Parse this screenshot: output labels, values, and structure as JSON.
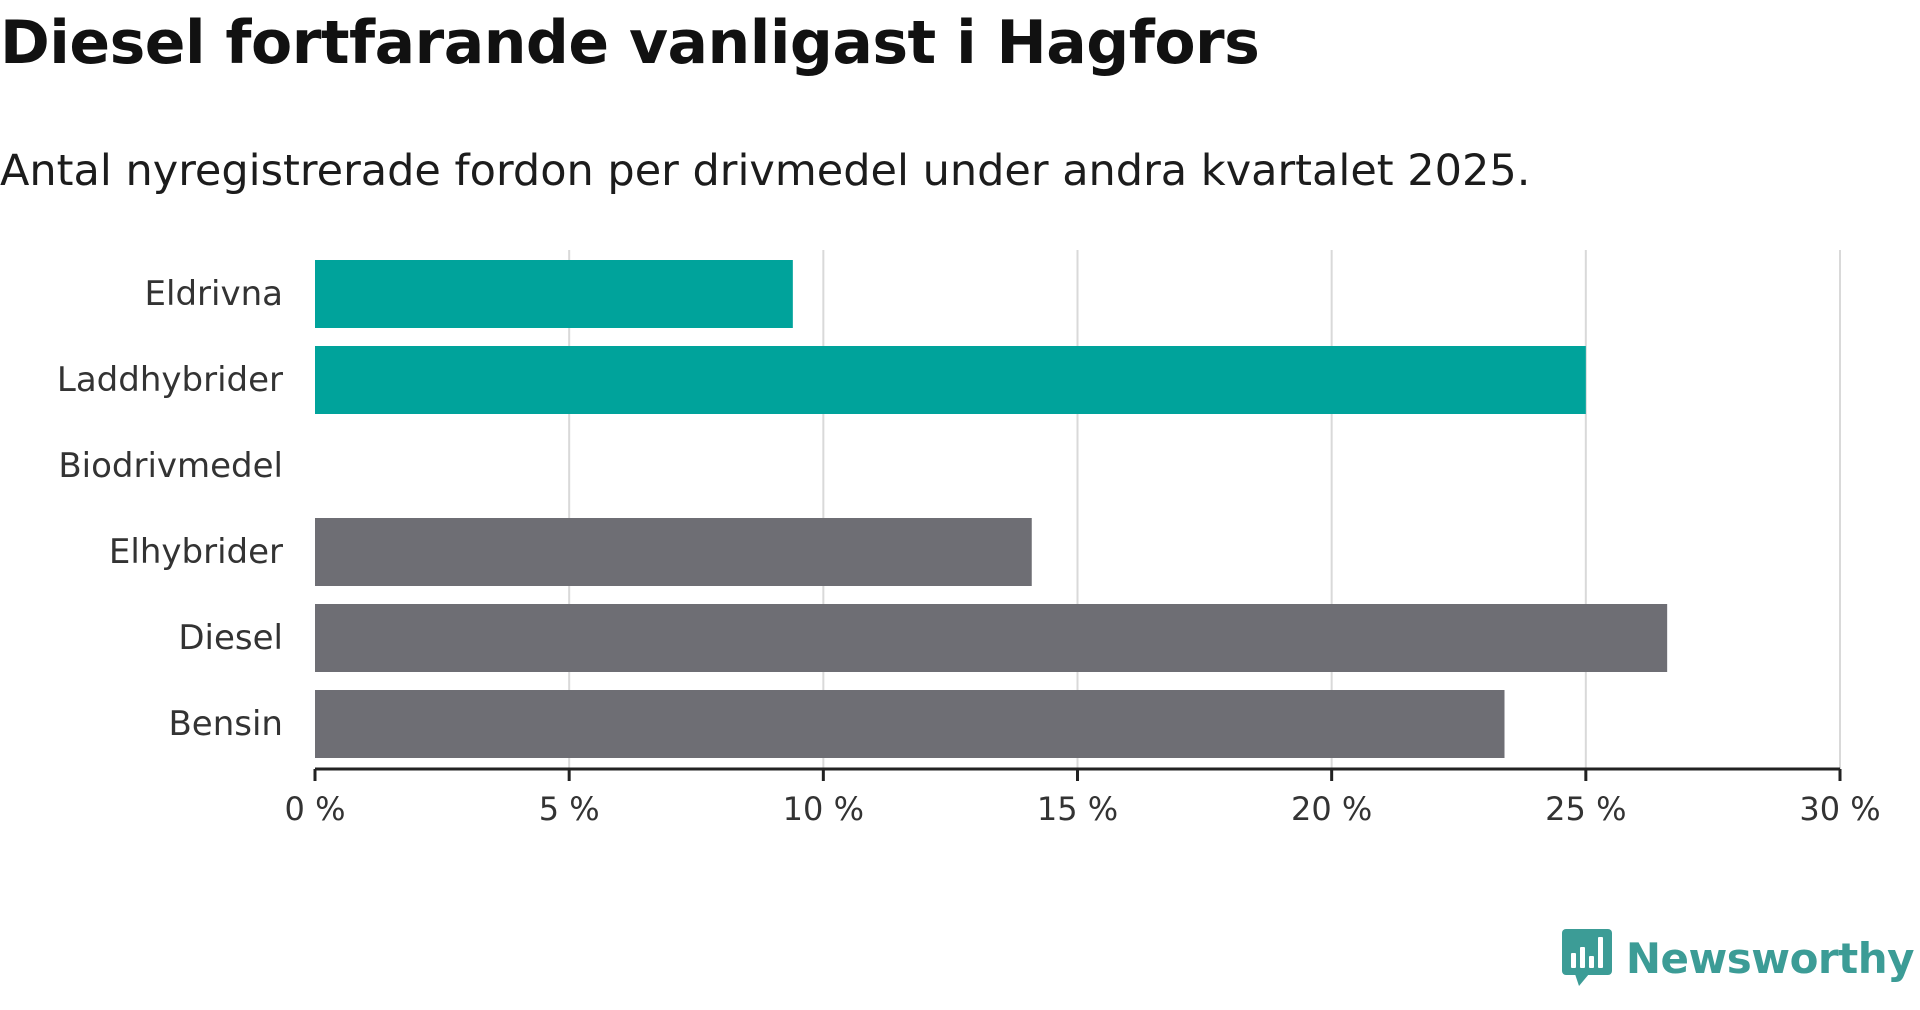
{
  "header": {
    "title": "Diesel fortfarande vanligast i Hagfors",
    "subtitle": "Antal nyregistrerade fordon per drivmedel under andra kvartalet 2025."
  },
  "brand": {
    "name": "Newsworthy",
    "logo_icon": "newsworthy-chart-speech-bubble-icon",
    "color": "#3c9c96"
  },
  "colors": {
    "highlight": "#00a39b",
    "other": "#6e6e74",
    "grid": "#d9d9d9",
    "axis": "#222222"
  },
  "chart_data": {
    "type": "bar",
    "orientation": "horizontal",
    "title": "Diesel fortfarande vanligast i Hagfors",
    "subtitle": "Antal nyregistrerade fordon per drivmedel under andra kvartalet 2025.",
    "categories": [
      "Eldrivna",
      "Laddhybrider",
      "Biodrivmedel",
      "Elhybrider",
      "Diesel",
      "Bensin"
    ],
    "values": [
      9.4,
      25.0,
      0,
      14.1,
      26.6,
      23.4
    ],
    "bar_colors": [
      "#00a39b",
      "#00a39b",
      "#00a39b",
      "#6e6e74",
      "#6e6e74",
      "#6e6e74"
    ],
    "xlim": [
      0,
      30
    ],
    "x_ticks": [
      0,
      5,
      10,
      15,
      20,
      25,
      30
    ],
    "x_tick_labels": [
      "0 %",
      "5 %",
      "10 %",
      "15 %",
      "20 %",
      "25 %",
      "30 %"
    ],
    "grid": true,
    "xlabel": "",
    "ylabel": ""
  }
}
